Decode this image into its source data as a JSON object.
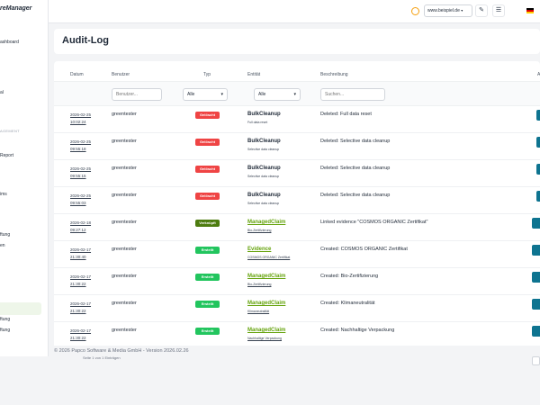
{
  "app": {
    "brand": "reManager"
  },
  "sidebar": {
    "items": [
      {
        "label": "ashboard"
      },
      {
        "label": "al"
      },
      {
        "label": "Report"
      },
      {
        "label": "ims"
      },
      {
        "label": "ftung"
      },
      {
        "label": "en"
      },
      {
        "label": "ftung"
      },
      {
        "label": "ftung"
      }
    ],
    "section_label": "AGEMENT"
  },
  "topbar": {
    "site_select": "www.beispiel.de",
    "theme_icon": "sun-icon",
    "colors": {
      "flag": [
        "#000000",
        "#dd0000",
        "#ffce00"
      ]
    }
  },
  "page": {
    "title": "Audit-Log"
  },
  "table": {
    "headers": {
      "date": "Datum",
      "user": "Benutzer",
      "type": "Typ",
      "entity": "Entität",
      "description": "Beschreibung",
      "action": "A"
    },
    "filters": {
      "user_placeholder": "Benutzer...",
      "type_value": "Alle",
      "entity_value": "Alle",
      "search_placeholder": "Suchen..."
    },
    "rows": [
      {
        "date": "2026-02-25",
        "time": "10:02:24",
        "user": "greentester",
        "type": "Gelöscht",
        "type_color": "#ef4444",
        "entity": "BulkCleanup",
        "entity_sub": "Full data reset",
        "entity_link": false,
        "description": "Deleted: Full data reset"
      },
      {
        "date": "2026-02-25",
        "time": "09:55:18",
        "user": "greentester",
        "type": "Gelöscht",
        "type_color": "#ef4444",
        "entity": "BulkCleanup",
        "entity_sub": "Selective data cleanup",
        "entity_link": false,
        "description": "Deleted: Selective data cleanup"
      },
      {
        "date": "2026-02-25",
        "time": "09:55:15",
        "user": "greentester",
        "type": "Gelöscht",
        "type_color": "#ef4444",
        "entity": "BulkCleanup",
        "entity_sub": "Selective data cleanup",
        "entity_link": false,
        "description": "Deleted: Selective data cleanup"
      },
      {
        "date": "2026-02-25",
        "time": "09:55:03",
        "user": "greentester",
        "type": "Gelöscht",
        "type_color": "#ef4444",
        "entity": "BulkCleanup",
        "entity_sub": "Selective data cleanup",
        "entity_link": false,
        "description": "Deleted: Selective data cleanup"
      },
      {
        "date": "2026-02-18",
        "time": "09:27:12",
        "user": "greentester",
        "type": "Verknüpft",
        "type_color": "#4d7c0f",
        "entity": "ManagedClaim",
        "entity_sub": "Bio-Zertifizierung",
        "entity_link": true,
        "description": "Linked evidence \"COSMOS ORGANIC Zertifikat\""
      },
      {
        "date": "2026-02-17",
        "time": "21:30:40",
        "user": "greentester",
        "type": "Erstellt",
        "type_color": "#22c55e",
        "entity": "Evidence",
        "entity_sub": "COSMOS ORGANIC Zertifikat",
        "entity_link": true,
        "description": "Created: COSMOS ORGANIC Zertifikat"
      },
      {
        "date": "2026-02-17",
        "time": "21:30:22",
        "user": "greentester",
        "type": "Erstellt",
        "type_color": "#22c55e",
        "entity": "ManagedClaim",
        "entity_sub": "Bio-Zertifizierung",
        "entity_link": true,
        "description": "Created: Bio-Zertifizierung"
      },
      {
        "date": "2026-02-17",
        "time": "21:30:22",
        "user": "greentester",
        "type": "Erstellt",
        "type_color": "#22c55e",
        "entity": "ManagedClaim",
        "entity_sub": "Klimaneutralität",
        "entity_link": true,
        "description": "Created: Klimaneutralität"
      },
      {
        "date": "2026-02-17",
        "time": "21:30:22",
        "user": "greentester",
        "type": "Erstellt",
        "type_color": "#22c55e",
        "entity": "ManagedClaim",
        "entity_sub": "Nachhaltige Verpackung",
        "entity_link": true,
        "description": "Created: Nachhaltige Verpackung"
      }
    ]
  },
  "footer": {
    "copyright": "© 2026 Papco Software & Media GmbH - Version 2026.02.26",
    "page_hint": "Seite 1 von 1 Einträgen"
  }
}
